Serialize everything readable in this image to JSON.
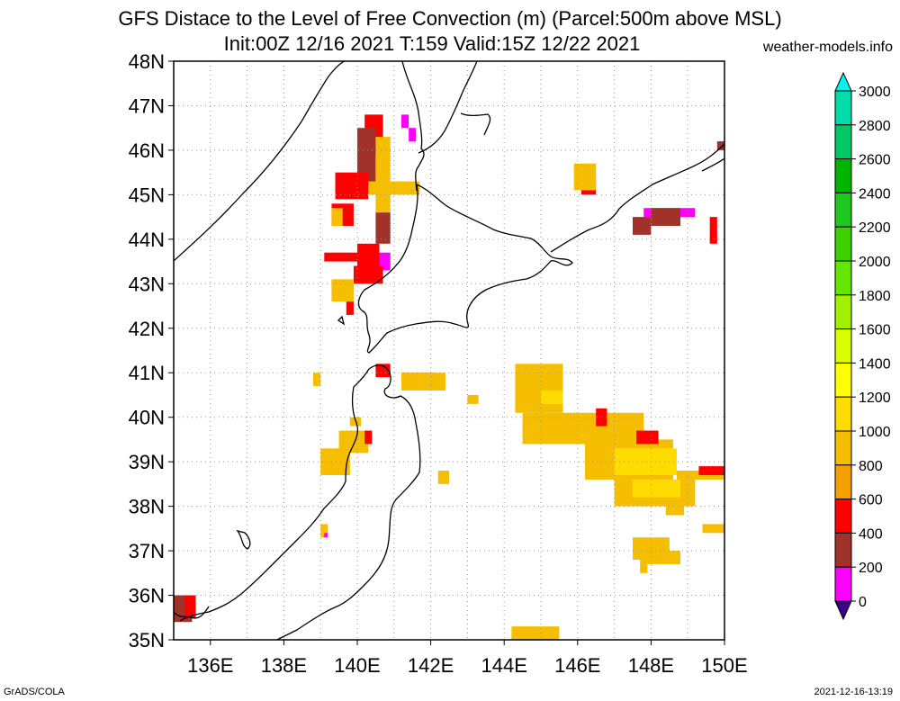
{
  "header": {
    "title_line1": "GFS Distace to the Level of Free Convection (m) (Parcel:500m above MSL)",
    "title_line2": "Init:00Z 12/16 2021 T:159 Valid:15Z 12/22 2021",
    "site": "weather-models.info"
  },
  "footer": {
    "left": "GrADS/COLA",
    "right": "2021-12-16-13:19"
  },
  "map": {
    "lon_range": [
      135,
      150
    ],
    "lat_range": [
      35,
      48
    ],
    "lat_labels": [
      "48N",
      "47N",
      "46N",
      "45N",
      "44N",
      "43N",
      "42N",
      "41N",
      "40N",
      "39N",
      "38N",
      "37N",
      "36N",
      "35N"
    ],
    "lon_labels": [
      "136E",
      "138E",
      "140E",
      "142E",
      "144E",
      "146E",
      "148E",
      "150E"
    ],
    "colors": {
      "c0": "#3c0088",
      "c200": "#ff00ff",
      "c400": "#a0322a",
      "c600": "#ff0000",
      "c800": "#f5a000",
      "c1000": "#f5be00",
      "c1200": "#ffdc00",
      "c1400": "#ffff00",
      "c1600": "#dcff00"
    },
    "patches": [
      {
        "lon": [
          140.2,
          140.7
        ],
        "lat": [
          45.9,
          46.8
        ],
        "c": "c600"
      },
      {
        "lon": [
          140.0,
          140.5
        ],
        "lat": [
          45.2,
          46.5
        ],
        "c": "c400"
      },
      {
        "lon": [
          140.5,
          140.9
        ],
        "lat": [
          44.6,
          46.3
        ],
        "c": "c1000"
      },
      {
        "lon": [
          139.4,
          140.3
        ],
        "lat": [
          44.9,
          45.5
        ],
        "c": "c600"
      },
      {
        "lon": [
          140.3,
          141.7
        ],
        "lat": [
          45.0,
          45.3
        ],
        "c": "c1000"
      },
      {
        "lon": [
          139.3,
          139.9
        ],
        "lat": [
          44.3,
          44.8
        ],
        "c": "c600"
      },
      {
        "lon": [
          139.3,
          139.6
        ],
        "lat": [
          44.3,
          44.7
        ],
        "c": "c1000"
      },
      {
        "lon": [
          140.5,
          140.9
        ],
        "lat": [
          43.9,
          44.6
        ],
        "c": "c400"
      },
      {
        "lon": [
          140.4,
          140.9
        ],
        "lat": [
          43.3,
          43.7
        ],
        "c": "c200"
      },
      {
        "lon": [
          140.0,
          140.6
        ],
        "lat": [
          43.3,
          43.9
        ],
        "c": "c600"
      },
      {
        "lon": [
          139.1,
          140.0
        ],
        "lat": [
          43.5,
          43.7
        ],
        "c": "c600"
      },
      {
        "lon": [
          139.9,
          140.7
        ],
        "lat": [
          43.0,
          43.4
        ],
        "c": "c600"
      },
      {
        "lon": [
          139.3,
          139.9
        ],
        "lat": [
          42.6,
          43.1
        ],
        "c": "c1000"
      },
      {
        "lon": [
          139.7,
          139.9
        ],
        "lat": [
          42.3,
          42.6
        ],
        "c": "c600"
      },
      {
        "lon": [
          141.2,
          141.4
        ],
        "lat": [
          46.5,
          46.8
        ],
        "c": "c200"
      },
      {
        "lon": [
          141.4,
          141.6
        ],
        "lat": [
          46.2,
          46.5
        ],
        "c": "c200"
      },
      {
        "lon": [
          146.1,
          146.5
        ],
        "lat": [
          45.0,
          45.3
        ],
        "c": "c600"
      },
      {
        "lon": [
          145.9,
          146.5
        ],
        "lat": [
          45.1,
          45.7
        ],
        "c": "c1000"
      },
      {
        "lon": [
          147.8,
          149.2
        ],
        "lat": [
          44.5,
          44.7
        ],
        "c": "c200"
      },
      {
        "lon": [
          147.5,
          148.0
        ],
        "lat": [
          44.1,
          44.5
        ],
        "c": "c400"
      },
      {
        "lon": [
          148.0,
          148.8
        ],
        "lat": [
          44.3,
          44.7
        ],
        "c": "c400"
      },
      {
        "lon": [
          149.6,
          149.8
        ],
        "lat": [
          43.9,
          44.5
        ],
        "c": "c600"
      },
      {
        "lon": [
          149.8,
          150.0
        ],
        "lat": [
          46.0,
          46.2
        ],
        "c": "c400"
      },
      {
        "lon": [
          140.5,
          140.9
        ],
        "lat": [
          40.9,
          41.2
        ],
        "c": "c600"
      },
      {
        "lon": [
          141.2,
          142.1
        ],
        "lat": [
          40.8,
          41.0
        ],
        "c": "c600"
      },
      {
        "lon": [
          141.2,
          142.4
        ],
        "lat": [
          40.6,
          41.0
        ],
        "c": "c1000"
      },
      {
        "lon": [
          138.8,
          139.0
        ],
        "lat": [
          40.7,
          41.0
        ],
        "c": "c1000"
      },
      {
        "lon": [
          143.0,
          143.3
        ],
        "lat": [
          40.3,
          40.5
        ],
        "c": "c1000"
      },
      {
        "lon": [
          139.5,
          140.3
        ],
        "lat": [
          39.2,
          39.7
        ],
        "c": "c1000"
      },
      {
        "lon": [
          139.0,
          139.8
        ],
        "lat": [
          38.7,
          39.3
        ],
        "c": "c1000"
      },
      {
        "lon": [
          139.8,
          140.1
        ],
        "lat": [
          39.8,
          40.0
        ],
        "c": "c1000"
      },
      {
        "lon": [
          140.2,
          140.4
        ],
        "lat": [
          39.4,
          39.7
        ],
        "c": "c600"
      },
      {
        "lon": [
          142.2,
          142.5
        ],
        "lat": [
          38.5,
          38.8
        ],
        "c": "c1000"
      },
      {
        "lon": [
          144.3,
          145.6
        ],
        "lat": [
          40.1,
          41.2
        ],
        "c": "c1000"
      },
      {
        "lon": [
          145.0,
          145.6
        ],
        "lat": [
          40.3,
          40.6
        ],
        "c": "c1200"
      },
      {
        "lon": [
          144.5,
          147.8
        ],
        "lat": [
          39.4,
          40.1
        ],
        "c": "c1000"
      },
      {
        "lon": [
          146.5,
          146.8
        ],
        "lat": [
          39.8,
          40.2
        ],
        "c": "c600"
      },
      {
        "lon": [
          146.2,
          148.6
        ],
        "lat": [
          38.6,
          39.5
        ],
        "c": "c1000"
      },
      {
        "lon": [
          147.0,
          148.7
        ],
        "lat": [
          38.7,
          39.3
        ],
        "c": "c1200"
      },
      {
        "lon": [
          147.6,
          148.2
        ],
        "lat": [
          39.4,
          39.7
        ],
        "c": "c600"
      },
      {
        "lon": [
          147.0,
          149.2
        ],
        "lat": [
          38.0,
          38.6
        ],
        "c": "c1000"
      },
      {
        "lon": [
          147.5,
          148.8
        ],
        "lat": [
          38.2,
          38.6
        ],
        "c": "c1200"
      },
      {
        "lon": [
          148.4,
          148.9
        ],
        "lat": [
          37.8,
          38.1
        ],
        "c": "c1000"
      },
      {
        "lon": [
          148.7,
          150.0
        ],
        "lat": [
          38.6,
          38.8
        ],
        "c": "c1000"
      },
      {
        "lon": [
          149.3,
          150.0
        ],
        "lat": [
          38.7,
          38.9
        ],
        "c": "c600"
      },
      {
        "lon": [
          149.4,
          150.0
        ],
        "lat": [
          37.4,
          37.6
        ],
        "c": "c1000"
      },
      {
        "lon": [
          147.5,
          148.5
        ],
        "lat": [
          36.8,
          37.3
        ],
        "c": "c1000"
      },
      {
        "lon": [
          147.7,
          148.8
        ],
        "lat": [
          36.7,
          37.0
        ],
        "c": "c1000"
      },
      {
        "lon": [
          147.7,
          147.9
        ],
        "lat": [
          36.5,
          36.7
        ],
        "c": "c1000"
      },
      {
        "lon": [
          139.0,
          139.2
        ],
        "lat": [
          37.3,
          37.6
        ],
        "c": "c1000"
      },
      {
        "lon": [
          139.1,
          139.2
        ],
        "lat": [
          37.3,
          37.4
        ],
        "c": "c200"
      },
      {
        "lon": [
          144.2,
          145.5
        ],
        "lat": [
          35.0,
          35.3
        ],
        "c": "c1000"
      },
      {
        "lon": [
          135.0,
          135.5
        ],
        "lat": [
          35.4,
          36.0
        ],
        "c": "c400"
      },
      {
        "lon": [
          135.3,
          135.6
        ],
        "lat": [
          35.5,
          36.0
        ],
        "c": "c600"
      }
    ]
  },
  "colorbar": {
    "labels": [
      "3000",
      "2800",
      "2600",
      "2400",
      "2200",
      "2000",
      "1800",
      "1600",
      "1400",
      "1200",
      "1000",
      "800",
      "600",
      "400",
      "200",
      "0"
    ],
    "colors": [
      "#00f5f0",
      "#00dcaa",
      "#00c864",
      "#00b400",
      "#1ec81e",
      "#3cd200",
      "#64e600",
      "#a0f000",
      "#dcff00",
      "#ffff00",
      "#ffdc00",
      "#f5be00",
      "#f5a000",
      "#ff0000",
      "#a0322a",
      "#ff00ff",
      "#3c0088"
    ]
  }
}
